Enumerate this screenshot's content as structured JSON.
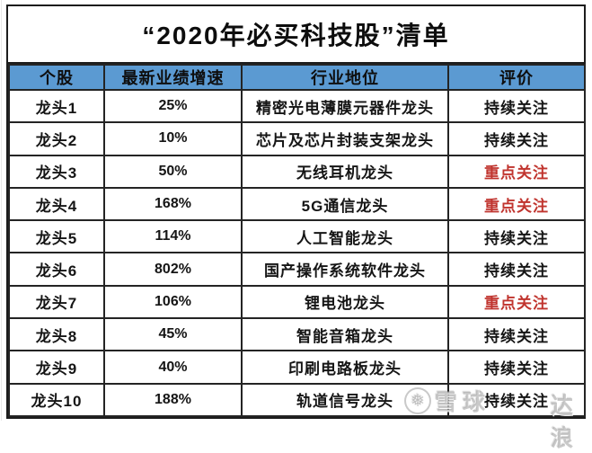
{
  "title": "“2020年必买科技股”清单",
  "table": {
    "headers": [
      "个股",
      "最新业绩增速",
      "行业地位",
      "评价"
    ],
    "rows": [
      {
        "stock": "龙头1",
        "growth": "25%",
        "position": "精密光电薄膜元器件龙头",
        "evaluation": "持续关注",
        "level": "normal"
      },
      {
        "stock": "龙头2",
        "growth": "10%",
        "position": "芯片及芯片封装支架龙头",
        "evaluation": "持续关注",
        "level": "normal"
      },
      {
        "stock": "龙头3",
        "growth": "50%",
        "position": "无线耳机龙头",
        "evaluation": "重点关注",
        "level": "key"
      },
      {
        "stock": "龙头4",
        "growth": "168%",
        "position": "5G通信龙头",
        "evaluation": "重点关注",
        "level": "key"
      },
      {
        "stock": "龙头5",
        "growth": "114%",
        "position": "人工智能龙头",
        "evaluation": "持续关注",
        "level": "normal"
      },
      {
        "stock": "龙头6",
        "growth": "802%",
        "position": "国产操作系统软件龙头",
        "evaluation": "持续关注",
        "level": "normal"
      },
      {
        "stock": "龙头7",
        "growth": "106%",
        "position": "锂电池龙头",
        "evaluation": "重点关注",
        "level": "key"
      },
      {
        "stock": "龙头8",
        "growth": "45%",
        "position": "智能音箱龙头",
        "evaluation": "持续关注",
        "level": "normal"
      },
      {
        "stock": "龙头9",
        "growth": "40%",
        "position": "印刷电路板龙头",
        "evaluation": "持续关注",
        "level": "normal"
      },
      {
        "stock": "龙头10",
        "growth": "188%",
        "position": "轨道信号龙头",
        "evaluation": "持续关注",
        "level": "normal"
      }
    ]
  },
  "watermark": {
    "logo_glyph": "❅",
    "brand": "雪球",
    "tail": "达浪"
  },
  "colors": {
    "header_bg": "#5b9ad2",
    "key_red": "#c0342e",
    "border": "#1c1c1c",
    "text": "#151515",
    "watermark_gray": "#aaaaaa"
  }
}
